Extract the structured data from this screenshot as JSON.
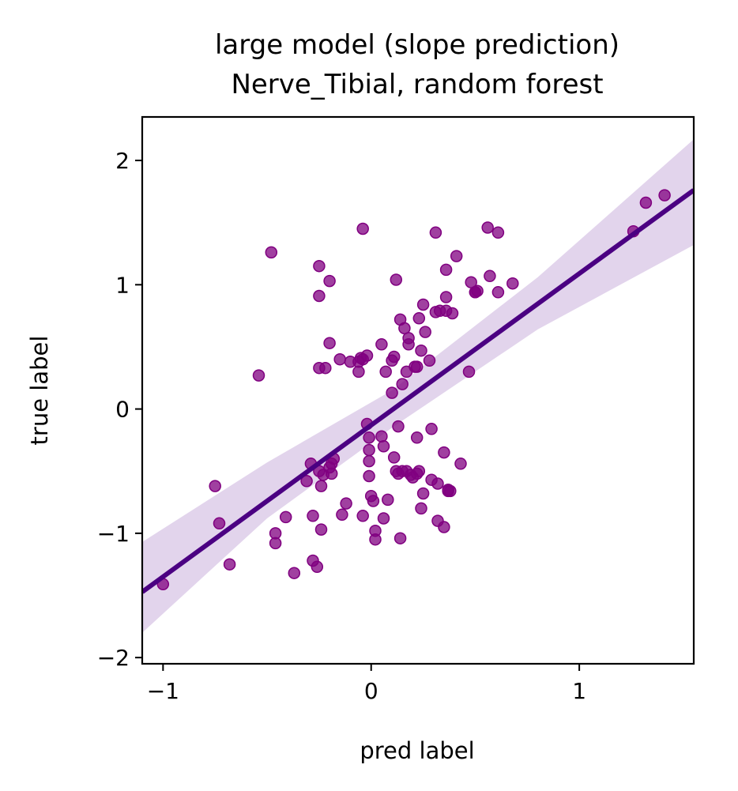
{
  "chart_data": {
    "type": "scatter",
    "title": "large model (slope prediction)",
    "subtitle": "Nerve_Tibial, random forest",
    "xlabel": "pred label",
    "ylabel": "true label",
    "xlim": [
      -1.1,
      1.55
    ],
    "ylim": [
      -2.05,
      2.35
    ],
    "xticks": [
      -1,
      0,
      1
    ],
    "yticks": [
      -2,
      -1,
      0,
      1,
      2
    ],
    "xtick_labels": [
      "−1",
      "0",
      "1"
    ],
    "ytick_labels": [
      "−2",
      "−1",
      "0",
      "1",
      "2"
    ],
    "grid": false,
    "point_color": "#800080",
    "line_color": "#4b0082",
    "band_color": "#e2d4ec",
    "regression": {
      "slope": 1.22,
      "intercept": -0.13,
      "band": [
        {
          "x": -1.1,
          "lo": -1.8,
          "hi": -1.07
        },
        {
          "x": -0.5,
          "lo": -0.88,
          "hi": -0.43
        },
        {
          "x": 0.1,
          "lo": -0.15,
          "hi": 0.15
        },
        {
          "x": 0.8,
          "lo": 0.64,
          "hi": 1.06
        },
        {
          "x": 1.55,
          "lo": 1.32,
          "hi": 2.17
        }
      ]
    },
    "points": [
      [
        -1.0,
        -1.41
      ],
      [
        -0.75,
        -0.62
      ],
      [
        -0.73,
        -0.92
      ],
      [
        -0.68,
        -1.25
      ],
      [
        -0.54,
        0.27
      ],
      [
        -0.48,
        1.26
      ],
      [
        -0.46,
        -1.0
      ],
      [
        -0.46,
        -1.08
      ],
      [
        -0.41,
        -0.87
      ],
      [
        -0.37,
        -1.32
      ],
      [
        -0.31,
        -0.58
      ],
      [
        -0.29,
        -0.44
      ],
      [
        -0.28,
        -1.22
      ],
      [
        -0.28,
        -0.86
      ],
      [
        -0.26,
        -1.27
      ],
      [
        -0.25,
        1.15
      ],
      [
        -0.25,
        0.33
      ],
      [
        -0.25,
        0.91
      ],
      [
        -0.25,
        -0.5
      ],
      [
        -0.24,
        -0.62
      ],
      [
        -0.24,
        -0.97
      ],
      [
        -0.23,
        -0.53
      ],
      [
        -0.22,
        0.33
      ],
      [
        -0.2,
        1.03
      ],
      [
        -0.2,
        -0.47
      ],
      [
        -0.19,
        -0.52
      ],
      [
        -0.18,
        -0.4
      ],
      [
        -0.19,
        -0.44
      ],
      [
        -0.2,
        0.53
      ],
      [
        -0.15,
        0.4
      ],
      [
        -0.14,
        -0.85
      ],
      [
        -0.12,
        -0.76
      ],
      [
        -0.1,
        0.38
      ],
      [
        -0.06,
        0.38
      ],
      [
        -0.06,
        0.3
      ],
      [
        -0.05,
        0.41
      ],
      [
        -0.04,
        1.45
      ],
      [
        -0.04,
        -0.86
      ],
      [
        -0.04,
        0.4
      ],
      [
        -0.02,
        -0.12
      ],
      [
        -0.02,
        0.43
      ],
      [
        -0.01,
        -0.23
      ],
      [
        -0.01,
        -0.33
      ],
      [
        -0.01,
        -0.42
      ],
      [
        -0.01,
        -0.54
      ],
      [
        0.0,
        -0.7
      ],
      [
        0.01,
        -0.74
      ],
      [
        0.02,
        -0.98
      ],
      [
        0.02,
        -1.05
      ],
      [
        0.05,
        0.52
      ],
      [
        0.06,
        -0.3
      ],
      [
        0.05,
        -0.22
      ],
      [
        0.06,
        -0.88
      ],
      [
        0.07,
        0.3
      ],
      [
        0.08,
        -0.73
      ],
      [
        0.1,
        0.13
      ],
      [
        0.1,
        0.39
      ],
      [
        0.11,
        0.42
      ],
      [
        0.11,
        -0.39
      ],
      [
        0.12,
        1.04
      ],
      [
        0.12,
        -0.5
      ],
      [
        0.13,
        -0.52
      ],
      [
        0.13,
        -0.14
      ],
      [
        0.14,
        0.72
      ],
      [
        0.14,
        -1.04
      ],
      [
        0.15,
        0.2
      ],
      [
        0.15,
        -0.5
      ],
      [
        0.16,
        0.65
      ],
      [
        0.17,
        0.3
      ],
      [
        0.17,
        -0.5
      ],
      [
        0.18,
        0.57
      ],
      [
        0.18,
        0.52
      ],
      [
        0.19,
        -0.53
      ],
      [
        0.2,
        -0.55
      ],
      [
        0.21,
        0.34
      ],
      [
        0.22,
        0.34
      ],
      [
        0.22,
        -0.52
      ],
      [
        0.22,
        -0.23
      ],
      [
        0.23,
        0.73
      ],
      [
        0.23,
        -0.5
      ],
      [
        0.24,
        0.47
      ],
      [
        0.24,
        -0.8
      ],
      [
        0.25,
        -0.68
      ],
      [
        0.25,
        0.84
      ],
      [
        0.26,
        0.62
      ],
      [
        0.28,
        0.39
      ],
      [
        0.29,
        -0.57
      ],
      [
        0.29,
        -0.16
      ],
      [
        0.31,
        1.42
      ],
      [
        0.32,
        -0.6
      ],
      [
        0.31,
        0.78
      ],
      [
        0.32,
        -0.9
      ],
      [
        0.33,
        0.79
      ],
      [
        0.35,
        -0.35
      ],
      [
        0.35,
        -0.95
      ],
      [
        0.36,
        0.79
      ],
      [
        0.36,
        0.9
      ],
      [
        0.36,
        1.12
      ],
      [
        0.37,
        -0.66
      ],
      [
        0.37,
        -0.65
      ],
      [
        0.38,
        -0.66
      ],
      [
        0.39,
        0.77
      ],
      [
        0.41,
        1.23
      ],
      [
        0.43,
        -0.44
      ],
      [
        0.47,
        0.3
      ],
      [
        0.48,
        1.02
      ],
      [
        0.5,
        0.94
      ],
      [
        0.5,
        0.94
      ],
      [
        0.51,
        0.95
      ],
      [
        0.56,
        1.46
      ],
      [
        0.57,
        1.07
      ],
      [
        0.61,
        1.42
      ],
      [
        0.61,
        0.94
      ],
      [
        0.68,
        1.01
      ],
      [
        1.26,
        1.43
      ],
      [
        1.32,
        1.66
      ],
      [
        1.41,
        1.72
      ]
    ]
  }
}
